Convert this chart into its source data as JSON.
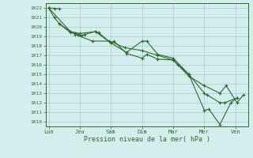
{
  "xlabel": "Pression niveau de la mer( hPa )",
  "ylim": [
    1009.5,
    1022.5
  ],
  "yticks": [
    1010,
    1011,
    1012,
    1013,
    1014,
    1015,
    1016,
    1017,
    1018,
    1019,
    1020,
    1021,
    1022
  ],
  "xtick_labels": [
    "Lun",
    "Jeu",
    "Sam",
    "Dim",
    "Mar",
    "Mer",
    "Ven"
  ],
  "xtick_positions": [
    0,
    1,
    2,
    3,
    4,
    5,
    6
  ],
  "line_color": "#2d6a2d",
  "bg_color": "#d4eeed",
  "grid_color": "#9ecece",
  "series": [
    {
      "x": [
        0.0,
        0.18,
        0.35
      ],
      "y": [
        1022.0,
        1021.95,
        1021.9
      ]
    },
    {
      "x": [
        0.0,
        0.18,
        0.35,
        0.7,
        0.85,
        0.95,
        1.05,
        1.15,
        1.5,
        1.6,
        2.0,
        2.1,
        2.5,
        3.0,
        3.15,
        3.5,
        4.0,
        4.15,
        4.5,
        5.0,
        5.1,
        5.5,
        5.65,
        6.05
      ],
      "y": [
        1022.0,
        1021.0,
        1020.3,
        1019.4,
        1019.3,
        1019.2,
        1019.1,
        1019.2,
        1019.5,
        1019.4,
        1018.3,
        1018.5,
        1017.2,
        1016.7,
        1017.1,
        1016.6,
        1016.5,
        1016.0,
        1015.0,
        1013.0,
        1012.8,
        1012.0,
        1012.0,
        1012.5
      ]
    },
    {
      "x": [
        0.0,
        0.7,
        1.0,
        1.5,
        2.0,
        2.5,
        3.0,
        3.15,
        3.5,
        4.0,
        4.5,
        5.0,
        5.15,
        5.5,
        5.85,
        6.05
      ],
      "y": [
        1022.0,
        1019.5,
        1019.3,
        1019.5,
        1018.3,
        1017.3,
        1018.5,
        1018.5,
        1017.1,
        1016.7,
        1015.0,
        1011.2,
        1011.3,
        1009.7,
        1012.0,
        1012.5
      ]
    },
    {
      "x": [
        0.35,
        0.85,
        1.4,
        1.95,
        2.45,
        3.0,
        3.5,
        4.0,
        4.5,
        5.0,
        5.5,
        5.7,
        6.05,
        6.25
      ],
      "y": [
        1020.3,
        1019.2,
        1018.5,
        1018.5,
        1017.8,
        1017.5,
        1017.0,
        1016.5,
        1014.8,
        1013.8,
        1013.0,
        1013.8,
        1012.0,
        1012.8
      ]
    }
  ]
}
